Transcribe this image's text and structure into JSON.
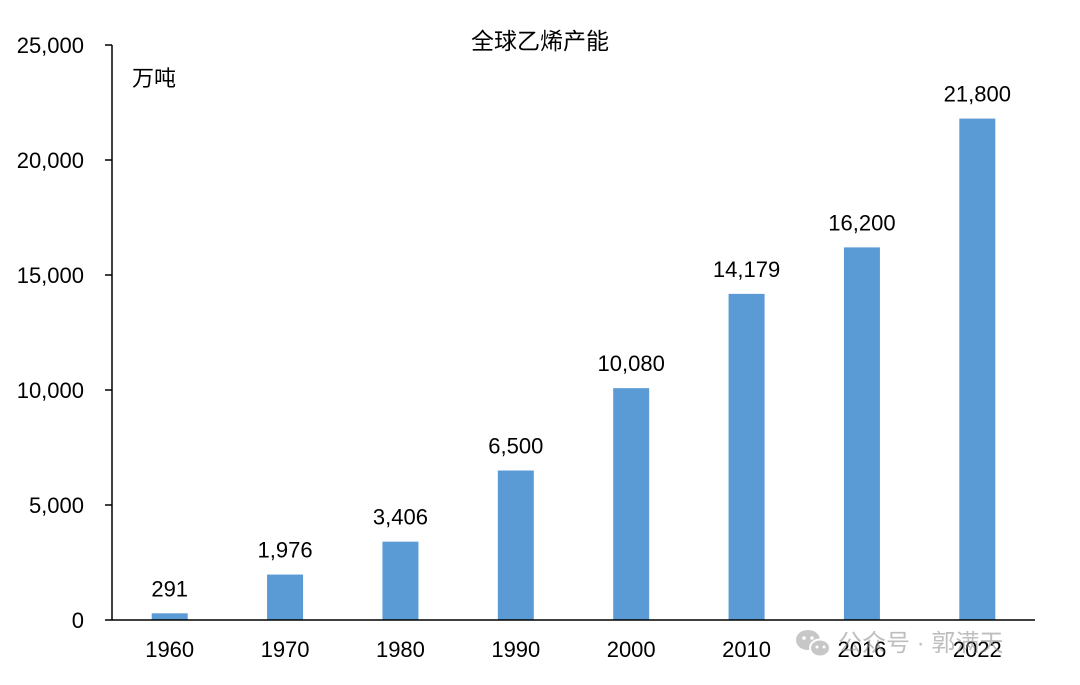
{
  "chart_data": {
    "type": "bar",
    "title": "全球乙烯产能",
    "unit_label": "万吨",
    "categories": [
      "1960",
      "1970",
      "1980",
      "1990",
      "2000",
      "2010",
      "2016",
      "2022"
    ],
    "values": [
      291,
      1976,
      3406,
      6500,
      10080,
      14179,
      16200,
      21800
    ],
    "value_labels": [
      "291",
      "1,976",
      "3,406",
      "6,500",
      "10,080",
      "14,179",
      "16,200",
      "21,800"
    ],
    "ylim": [
      0,
      25000
    ],
    "yticks": [
      0,
      5000,
      10000,
      15000,
      20000,
      25000
    ],
    "ytick_labels": [
      "0",
      "5,000",
      "10,000",
      "15,000",
      "20,000",
      "25,000"
    ],
    "grid": false,
    "legend": "none",
    "bar_color": "#5b9bd5"
  },
  "watermark": {
    "text": "公众号 · 郭满天",
    "icon": "wechat-icon"
  }
}
